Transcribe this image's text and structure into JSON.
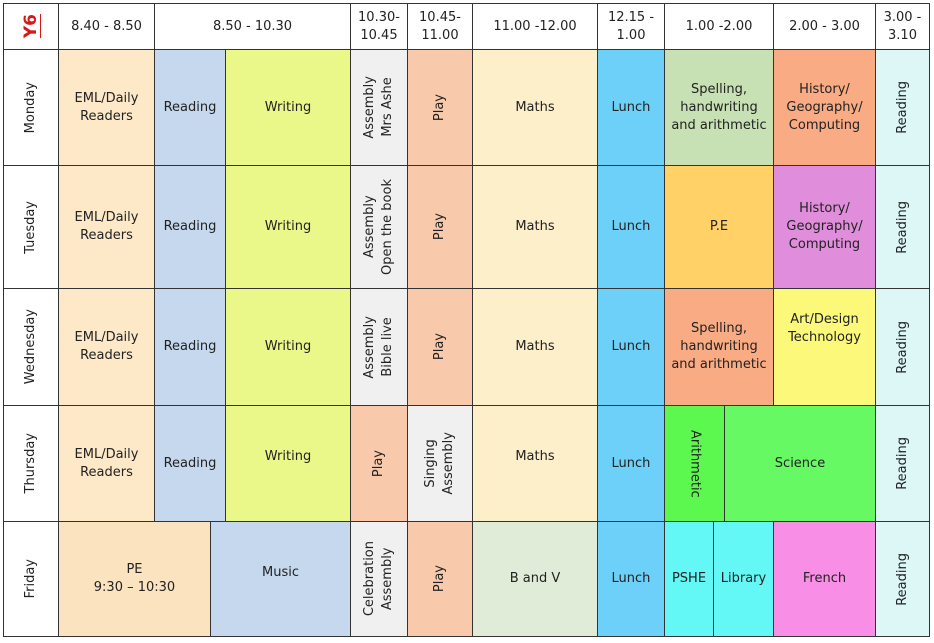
{
  "corner_label": "Y6",
  "headers": [
    "8.40 - 8.50",
    "8.50 - 10.30",
    "10.30-\n10.45",
    "10.45-\n11.00",
    "11.00 -12.00",
    "12.15 -\n1.00",
    "1.00 -2.00",
    "2.00 - 3.00",
    "3.00 -\n3.10"
  ],
  "days": [
    "Monday",
    "Tuesday",
    "Wednesday",
    "Thursday",
    "Friday"
  ],
  "rows": [
    [
      "EML/Daily\nReaders",
      "Reading",
      "Writing",
      "Assembly\nMrs Ashe",
      "Play",
      "Maths",
      "Lunch",
      "Spelling,\nhandwriting\nand arithmetic",
      "History/\nGeography/\nComputing",
      "Reading"
    ],
    [
      "EML/Daily\nReaders",
      "Reading",
      "Writing",
      "Assembly\nOpen the book",
      "Play",
      "Maths",
      "Lunch",
      "P.E",
      "History/\nGeography/\nComputing",
      "Reading"
    ],
    [
      "EML/Daily\nReaders",
      "Reading",
      "Writing",
      "Assembly\nBible live",
      "Play",
      "Maths",
      "Lunch",
      "Spelling,\nhandwriting\nand arithmetic",
      "Art/Design\nTechnology",
      "Reading"
    ],
    [
      "EML/Daily\nReaders",
      "Reading",
      "Writing",
      "Play",
      "Singing\nAssembly",
      "Maths",
      "Lunch",
      "Arithmetic",
      "Science",
      "Reading"
    ],
    [
      "PE\n9:30 – 10:30",
      "Music",
      "Celebration\nAssembly",
      "Play",
      "B and V",
      "Lunch",
      "PSHE",
      "Library",
      "French",
      "Reading"
    ]
  ],
  "colors": {
    "eml": "#fde9c8",
    "reading": "#c5d8ee",
    "writing": "#eaf88a",
    "assembly": "#f0f0f0",
    "play": "#f8c9ab",
    "maths": "#fdefca",
    "lunch": "#6dd0f8",
    "spelling": "#c7e0b4",
    "history": "#f9ab84",
    "history_tue": "#e08ddb",
    "pe_tue": "#ffd166",
    "art": "#fbf87a",
    "arithmetic": "#5df84f",
    "science": "#66f964",
    "reading_end": "#ddf7f7",
    "pe_fri": "#fbe3bf",
    "music": "#c5d8ee",
    "bandv": "#e1ecd8",
    "pshe": "#63f8f5",
    "library": "#63f8f5",
    "french": "#f98ee6"
  }
}
